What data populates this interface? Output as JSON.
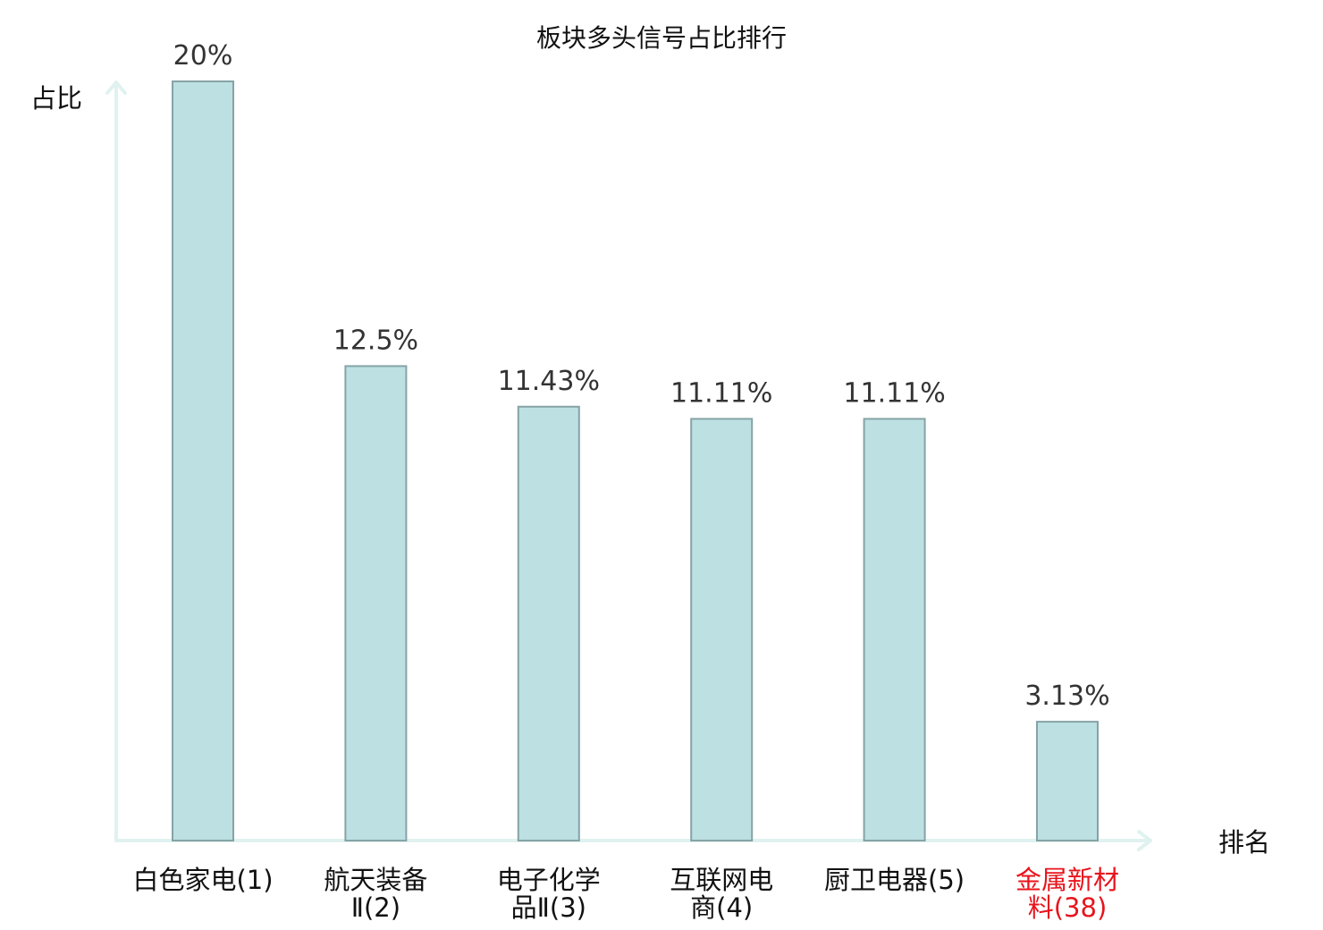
{
  "chart_data": {
    "type": "bar",
    "title": "板块多头信号占比排行",
    "ylabel": "占比",
    "xlabel": "排名",
    "categories": [
      [
        "白色家电(1)"
      ],
      [
        "航天装备",
        "Ⅱ(2)"
      ],
      [
        "电子化学",
        "品Ⅱ(3)"
      ],
      [
        "互联网电",
        "商(4)"
      ],
      [
        "厨卫电器(5)"
      ],
      [
        "金属新材",
        "料(38)"
      ]
    ],
    "values": [
      20,
      12.5,
      11.43,
      11.11,
      11.11,
      3.13
    ],
    "value_labels": [
      "20%",
      "12.5%",
      "11.43%",
      "11.11%",
      "11.11%",
      "3.13%"
    ],
    "highlight_index": 5,
    "ylim": [
      0,
      20
    ],
    "grid": false,
    "legend": "none",
    "colors": {
      "bar_fill": "#bde0e3",
      "bar_stroke": "#86a3a6",
      "axis": "#e0f2f0",
      "highlight_text": "#e8141c"
    }
  }
}
